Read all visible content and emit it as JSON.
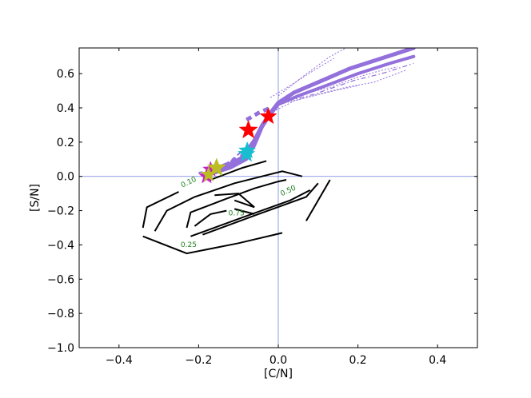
{
  "chart_data": {
    "type": "line",
    "xlabel": "[C/N]",
    "ylabel": "[S/N]",
    "xlim": [
      -0.5,
      0.5
    ],
    "ylim": [
      -1.0,
      0.75
    ],
    "xticks": [
      -0.4,
      -0.2,
      0.0,
      0.2,
      0.4
    ],
    "xtick_labels": [
      "−0.4",
      "−0.2",
      "0.0",
      "0.2",
      "0.4"
    ],
    "yticks": [
      -1.0,
      -0.8,
      -0.6,
      -0.4,
      -0.2,
      0.0,
      0.2,
      0.4,
      0.6
    ],
    "ytick_labels": [
      "−1.0",
      "−0.8",
      "−0.6",
      "−0.4",
      "−0.2",
      "0.0",
      "0.2",
      "0.4",
      "0.6"
    ],
    "reference_lines": {
      "x": 0.0,
      "y": 0.0,
      "color": "#6f7fdf"
    },
    "contour_color": "#000000",
    "contour_label_color": "#1a7f1a",
    "contours": [
      {
        "level": 0.1,
        "label": "0.10",
        "segments": [
          [
            [
              -0.34,
              -0.3
            ],
            [
              -0.33,
              -0.18
            ],
            [
              -0.25,
              -0.09
            ]
          ],
          [
            [
              -0.17,
              -0.02
            ],
            [
              -0.09,
              0.05
            ],
            [
              -0.03,
              0.09
            ]
          ],
          [
            [
              -0.34,
              -0.35
            ],
            [
              -0.23,
              -0.45
            ],
            [
              -0.1,
              -0.39
            ],
            [
              0.01,
              -0.33
            ]
          ],
          [
            [
              0.07,
              -0.26
            ],
            [
              0.13,
              -0.02
            ]
          ]
        ],
        "label_pos": [
          -0.225,
          -0.035
        ],
        "label_angle": -25
      },
      {
        "level": 0.25,
        "label": "0.25",
        "segments": [
          [
            [
              -0.31,
              -0.32
            ],
            [
              -0.28,
              -0.2
            ],
            [
              -0.21,
              -0.12
            ],
            [
              -0.11,
              -0.04
            ],
            [
              0.01,
              0.03
            ],
            [
              0.06,
              0.0
            ]
          ],
          [
            [
              0.1,
              -0.04
            ],
            [
              0.07,
              -0.12
            ],
            [
              -0.05,
              -0.22
            ],
            [
              -0.19,
              -0.34
            ]
          ]
        ],
        "label_pos": [
          -0.225,
          -0.4
        ],
        "label_angle": 0
      },
      {
        "level": 0.5,
        "label": "0.50",
        "segments": [
          [
            [
              -0.23,
              -0.3
            ],
            [
              -0.22,
              -0.21
            ],
            [
              -0.13,
              -0.13
            ],
            [
              -0.06,
              -0.07
            ],
            [
              0.0,
              -0.03
            ],
            [
              0.02,
              -0.02
            ]
          ],
          [
            [
              0.08,
              -0.08
            ],
            [
              0.03,
              -0.14
            ],
            [
              -0.09,
              -0.24
            ],
            [
              -0.22,
              -0.35
            ]
          ]
        ],
        "label_pos": [
          0.025,
          -0.085
        ],
        "label_angle": -25
      },
      {
        "level": 0.75,
        "label": "0.75",
        "segments": [
          [
            [
              -0.21,
              -0.29
            ],
            [
              -0.17,
              -0.22
            ],
            [
              -0.13,
              -0.2
            ]
          ],
          [
            [
              -0.11,
              -0.19
            ],
            [
              -0.06,
              -0.22
            ]
          ],
          [
            [
              -0.11,
              -0.14
            ],
            [
              -0.06,
              -0.18
            ],
            [
              -0.1,
              -0.1
            ],
            [
              -0.16,
              -0.11
            ]
          ]
        ],
        "label_pos": [
          -0.105,
          -0.215
        ],
        "label_angle": 0
      }
    ],
    "tracks": {
      "color": "#9370db",
      "thick": [
        [
          -0.17,
          0.03
        ],
        [
          -0.13,
          0.06
        ],
        [
          -0.09,
          0.11
        ],
        [
          -0.06,
          0.21
        ],
        [
          -0.04,
          0.3
        ],
        [
          -0.02,
          0.37
        ],
        [
          0.0,
          0.43
        ],
        [
          0.04,
          0.49
        ],
        [
          0.1,
          0.55
        ],
        [
          0.18,
          0.63
        ],
        [
          0.26,
          0.69
        ],
        [
          0.34,
          0.75
        ]
      ],
      "thick2": [
        [
          -0.16,
          0.02
        ],
        [
          -0.12,
          0.05
        ],
        [
          -0.08,
          0.1
        ],
        [
          -0.06,
          0.18
        ],
        [
          -0.04,
          0.29
        ],
        [
          -0.02,
          0.36
        ],
        [
          0.0,
          0.42
        ],
        [
          0.05,
          0.47
        ],
        [
          0.12,
          0.53
        ],
        [
          0.2,
          0.6
        ],
        [
          0.28,
          0.66
        ],
        [
          0.34,
          0.7
        ]
      ],
      "dashed_thick": [
        [
          -0.17,
          0.03
        ],
        [
          -0.12,
          0.08
        ],
        [
          -0.09,
          0.12
        ]
      ],
      "dashed_upper": [
        [
          -0.08,
          0.33
        ],
        [
          -0.05,
          0.37
        ],
        [
          -0.02,
          0.4
        ]
      ],
      "dashed_lower": [
        [
          -0.2,
          0.02
        ],
        [
          -0.15,
          0.05
        ],
        [
          -0.12,
          0.09
        ],
        [
          -0.09,
          0.15
        ]
      ],
      "thin": [
        [
          [
            0.0,
            0.47
          ],
          [
            0.06,
            0.58
          ],
          [
            0.13,
            0.7
          ],
          [
            0.17,
            0.75
          ]
        ],
        [
          [
            -0.02,
            0.46
          ],
          [
            0.03,
            0.53
          ],
          [
            0.09,
            0.62
          ],
          [
            0.14,
            0.69
          ]
        ],
        [
          [
            0.0,
            0.42
          ],
          [
            0.06,
            0.48
          ],
          [
            0.13,
            0.52
          ],
          [
            0.2,
            0.58
          ],
          [
            0.26,
            0.62
          ],
          [
            0.3,
            0.64
          ]
        ],
        [
          [
            0.0,
            0.42
          ],
          [
            0.07,
            0.46
          ],
          [
            0.14,
            0.5
          ],
          [
            0.2,
            0.53
          ]
        ],
        [
          [
            -0.02,
            0.37
          ],
          [
            0.04,
            0.44
          ],
          [
            0.1,
            0.48
          ],
          [
            0.17,
            0.52
          ],
          [
            0.24,
            0.55
          ],
          [
            0.32,
            0.62
          ]
        ]
      ],
      "dashdot": [
        [
          0.0,
          0.43
        ],
        [
          0.04,
          0.45
        ],
        [
          0.09,
          0.48
        ],
        [
          0.14,
          0.52
        ],
        [
          0.19,
          0.56
        ],
        [
          0.26,
          0.6
        ],
        [
          0.34,
          0.66
        ]
      ]
    },
    "markers": [
      {
        "x": -0.075,
        "y": 0.27,
        "color": "#ff0000",
        "size": 12
      },
      {
        "x": -0.025,
        "y": 0.35,
        "color": "#ff0000",
        "size": 11
      },
      {
        "x": -0.078,
        "y": 0.15,
        "color": "#17becf",
        "size": 11
      },
      {
        "x": -0.08,
        "y": 0.13,
        "color": "#17becf",
        "size": 11
      },
      {
        "x": -0.18,
        "y": 0.0,
        "color": "#c41fc4",
        "size": 10
      },
      {
        "x": -0.17,
        "y": 0.04,
        "color": "#c41fc4",
        "size": 10
      },
      {
        "x": -0.155,
        "y": 0.05,
        "color": "#bcbd22",
        "size": 12
      },
      {
        "x": -0.175,
        "y": 0.01,
        "color": "#bcbd22",
        "size": 10
      }
    ]
  }
}
